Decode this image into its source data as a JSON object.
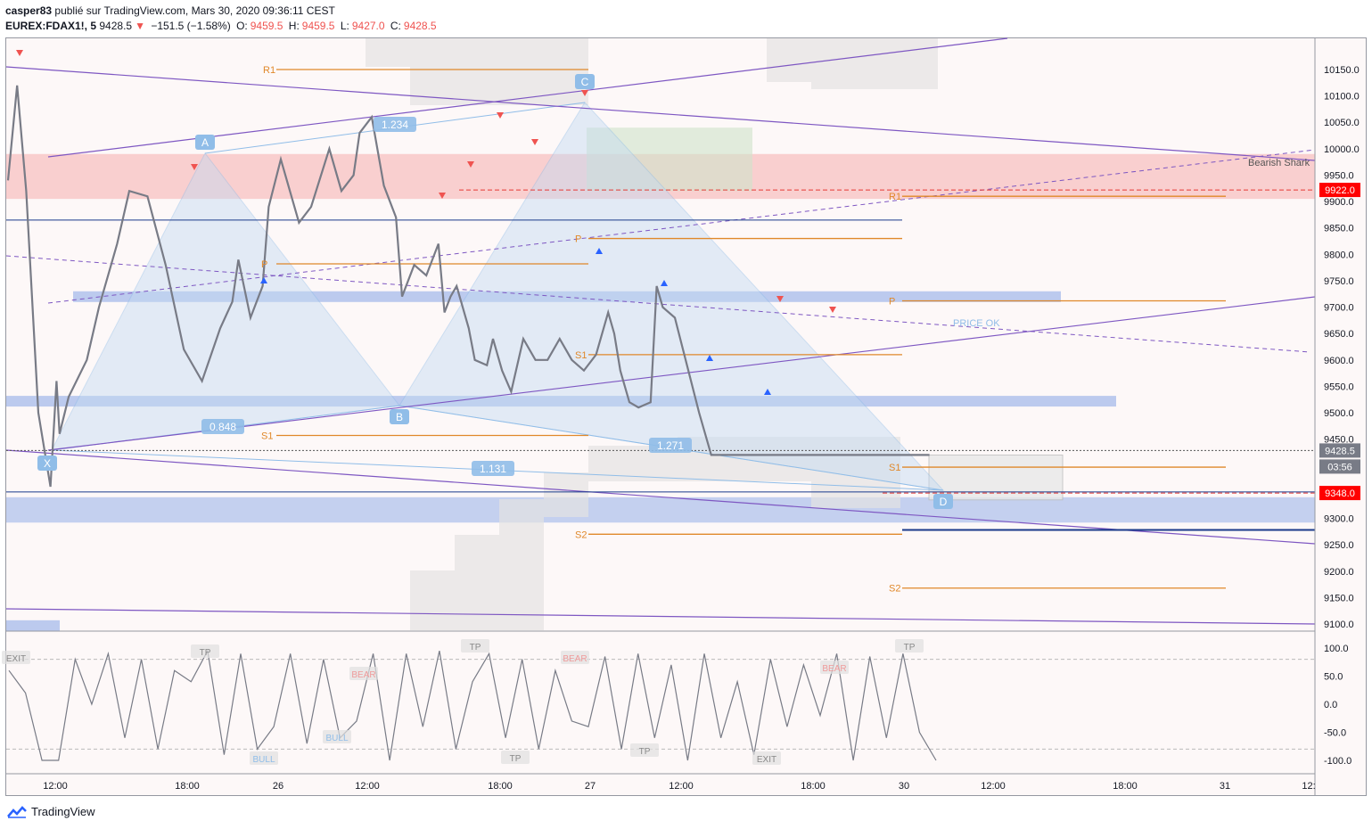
{
  "header": {
    "author": "casper83",
    "published_text": "publié sur TradingView.com, Mars 30, 2020 09:36:11 CEST",
    "symbol": "EUREX:FDAX1!, 5",
    "last": "9428.5",
    "change": "−151.5 (−1.58%)",
    "open_label": "O:",
    "open": "9459.5",
    "high_label": "H:",
    "high": "9459.5",
    "low_label": "L:",
    "low": "9427.0",
    "close_label": "C:",
    "close": "9428.5"
  },
  "footer": {
    "brand": "TradingView"
  },
  "colors": {
    "price_line": "#787b86",
    "purple_trend": "#7e57c2",
    "pivot_orange": "#e0882a",
    "zone_red": "#f7b4b4",
    "zone_blue": "#9fb6ea",
    "harmonic_fill": "#c3daf2",
    "label_red": "#ff0000",
    "label_grey": "#787b86"
  },
  "chart_data": {
    "type": "line",
    "title": "",
    "symbol": "EUREX:FDAX1!",
    "interval": "5",
    "ylim": [
      9070,
      10180
    ],
    "y_ticks": [
      10150,
      10100,
      10050,
      10000,
      9950,
      9900,
      9850,
      9800,
      9750,
      9700,
      9650,
      9600,
      9550,
      9500,
      9450,
      9400,
      9350,
      9300,
      9250,
      9200,
      9150,
      9100
    ],
    "x_ticks": [
      "12:00",
      "18:00",
      "26",
      "12:00",
      "18:00",
      "27",
      "12:00",
      "18:00",
      "30",
      "12:00",
      "18:00",
      "31",
      "12:"
    ],
    "series": [
      {
        "kind": "price",
        "x": [
          0,
          3,
          6,
          10,
          14,
          16,
          17,
          20,
          26,
          30,
          36,
          40,
          46,
          52,
          58,
          64,
          70,
          74,
          76,
          80,
          84,
          86,
          90,
          92,
          96,
          100,
          106,
          110,
          114,
          116,
          120,
          124,
          128,
          130,
          134,
          138,
          142,
          144,
          146,
          148,
          150,
          152,
          154,
          158,
          160,
          163,
          166,
          170,
          174,
          178,
          182,
          186,
          190,
          194,
          198,
          200,
          202,
          205,
          208,
          212,
          214,
          216,
          220,
          224,
          228,
          232,
          236,
          240,
          244,
          248,
          250,
          254,
          258,
          262,
          266,
          270,
          276,
          280,
          284,
          288,
          292,
          296,
          300,
          304,
          308
        ],
        "y": [
          9940,
          10120,
          9920,
          9500,
          9360,
          9560,
          9460,
          9530,
          9600,
          9700,
          9820,
          9920,
          9910,
          9780,
          9620,
          9560,
          9660,
          9710,
          9790,
          9680,
          9740,
          9890,
          9980,
          9940,
          9860,
          9890,
          10000,
          9920,
          9950,
          10030,
          10060,
          9930,
          9870,
          9720,
          9780,
          9760,
          9820,
          9690,
          9720,
          9740,
          9700,
          9660,
          9600,
          9590,
          9640,
          9580,
          9540,
          9640,
          9600,
          9600,
          9640,
          9600,
          9580,
          9610,
          9690,
          9650,
          9580,
          9520,
          9510,
          9520,
          9740,
          9700,
          9680,
          9590,
          9500,
          9420,
          9420,
          9420,
          9420,
          9420,
          9420,
          9420,
          9420,
          9420,
          9420,
          9420,
          9420,
          9420,
          9420,
          9420,
          9420,
          9420,
          9420,
          9420,
          9420
        ]
      },
      {
        "kind": "stochastic_oscillator",
        "ylim": [
          -110,
          110
        ],
        "y_ticks": [
          100.0,
          50.0,
          0.0,
          -50.0,
          -100.0
        ],
        "y": [
          60,
          20,
          -100,
          -100,
          80,
          0,
          90,
          -60,
          80,
          -80,
          60,
          40,
          95,
          -90,
          90,
          -80,
          -40,
          90,
          -70,
          80,
          -60,
          -30,
          90,
          -100,
          90,
          -40,
          95,
          -80,
          40,
          90,
          -60,
          80,
          -80,
          60,
          -30,
          -40,
          85,
          -80,
          90,
          -60,
          70,
          -100,
          90,
          -60,
          40,
          -90,
          80,
          -40,
          70,
          -20,
          90,
          -100,
          85,
          -60,
          90,
          -50,
          -100
        ]
      }
    ],
    "annotations": {
      "harmonic_points": [
        "X",
        "A",
        "B",
        "C",
        "D"
      ],
      "ratios": [
        "1.234",
        "0.848",
        "1.131",
        "1.271"
      ],
      "pattern_label": "Bearish Shark",
      "note": "PRICE OK",
      "pivot_labels": [
        "R1",
        "P",
        "S1",
        "S2"
      ],
      "price_labels": {
        "last": "9428.5",
        "countdown": "03:56",
        "upper": "9922.0",
        "lower": "9348.0"
      },
      "oscillator_labels": [
        "EXIT",
        "TP",
        "BEAR",
        "BULL",
        "TP",
        "BEAR",
        "TP",
        "BULL",
        "TP",
        "EXIT",
        "BEAR",
        "TP"
      ]
    }
  }
}
